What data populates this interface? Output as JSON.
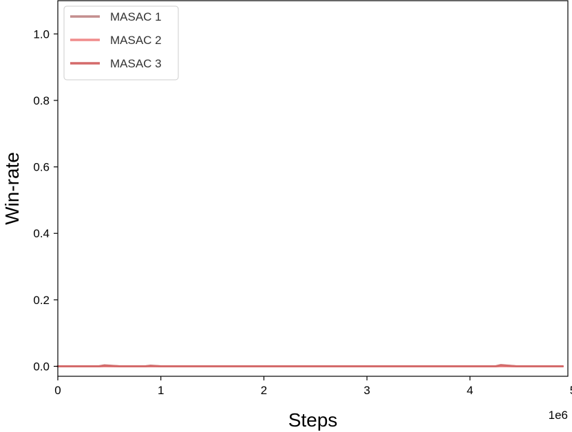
{
  "chart_data": {
    "type": "line",
    "title": "",
    "xlabel": "Steps",
    "ylabel": "Win-rate",
    "x_offset_label": "1e6",
    "xlim": [
      0,
      4.95
    ],
    "ylim": [
      -0.03,
      1.1
    ],
    "x_ticks": [
      0,
      1,
      2,
      3,
      4,
      5
    ],
    "x_tick_labels": [
      "0",
      "1",
      "2",
      "3",
      "4",
      "5"
    ],
    "y_ticks": [
      0.0,
      0.2,
      0.4,
      0.6,
      0.8,
      1.0
    ],
    "y_tick_labels": [
      "0.0",
      "0.2",
      "0.4",
      "0.6",
      "0.8",
      "1.0"
    ],
    "grid": false,
    "legend_position": "top-left",
    "series": [
      {
        "name": "MASAC 1",
        "color": "#c48e8e",
        "x": [
          0,
          0.4,
          0.45,
          0.6,
          0.85,
          0.9,
          1.0,
          2.0,
          3.0,
          4.0,
          4.25,
          4.3,
          4.45,
          4.9
        ],
        "y": [
          0,
          0,
          0.003,
          0,
          0,
          0.002,
          0,
          0,
          0,
          0,
          0,
          0.004,
          0,
          0
        ]
      },
      {
        "name": "MASAC 2",
        "color": "#f08c8c",
        "x": [
          0,
          1.0,
          2.0,
          3.0,
          4.0,
          4.9
        ],
        "y": [
          0,
          0,
          0,
          0,
          0,
          0
        ]
      },
      {
        "name": "MASAC 3",
        "color": "#d46a6a",
        "x": [
          0,
          0.4,
          0.45,
          0.6,
          0.85,
          0.9,
          1.0,
          2.0,
          3.0,
          4.0,
          4.25,
          4.3,
          4.45,
          4.9
        ],
        "y": [
          0,
          0,
          0.002,
          0,
          0,
          0.001,
          0,
          0,
          0,
          0,
          0,
          0.003,
          0,
          0
        ]
      }
    ]
  }
}
